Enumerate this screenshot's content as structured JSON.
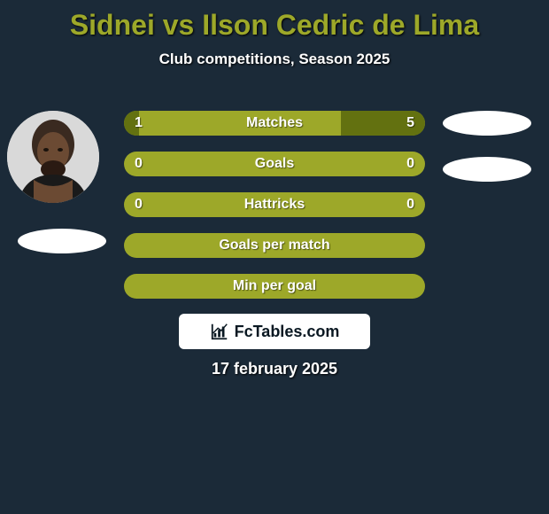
{
  "title": "Sidnei vs Ilson Cedric de Lima",
  "subtitle": "Club competitions, Season 2025",
  "date": "17 february 2025",
  "logo_text": "FcTables.com",
  "colors": {
    "background": "#1b2a38",
    "bar_base": "#9da829",
    "bar_fill": "#637110",
    "title_color": "#9da829",
    "text_color": "#ffffff"
  },
  "rows": [
    {
      "label": "Matches",
      "left": "1",
      "right": "5",
      "left_pct": 5,
      "right_pct": 28
    },
    {
      "label": "Goals",
      "left": "0",
      "right": "0",
      "left_pct": 0,
      "right_pct": 0
    },
    {
      "label": "Hattricks",
      "left": "0",
      "right": "0",
      "left_pct": 0,
      "right_pct": 0
    },
    {
      "label": "Goals per match",
      "left": "",
      "right": "",
      "left_pct": 0,
      "right_pct": 0
    },
    {
      "label": "Min per goal",
      "left": "",
      "right": "",
      "left_pct": 0,
      "right_pct": 0
    }
  ]
}
